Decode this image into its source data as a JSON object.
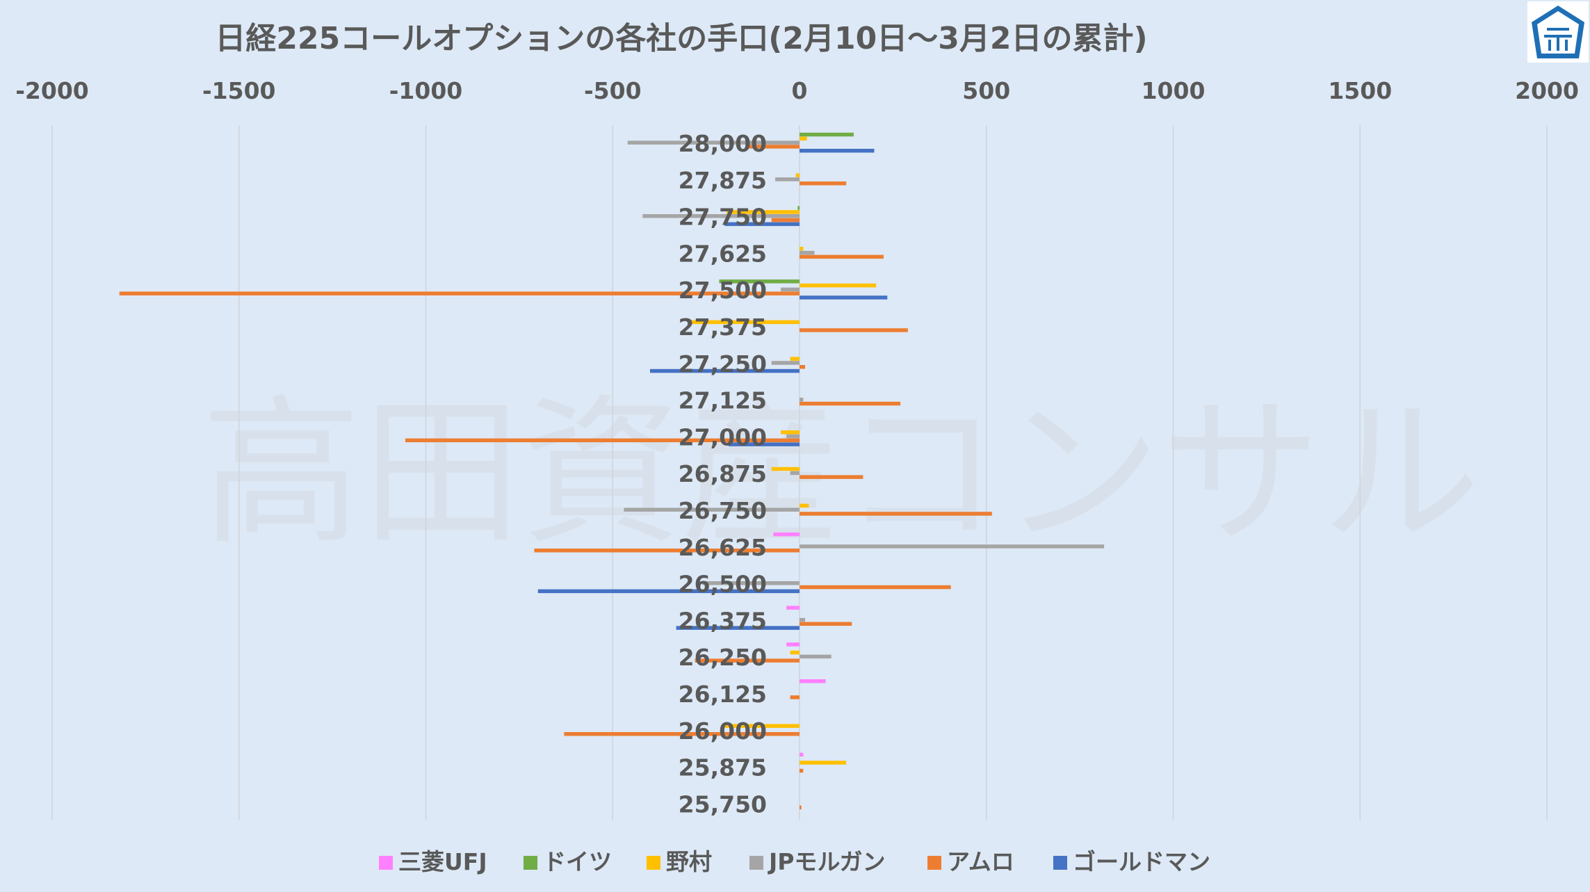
{
  "chart_data": {
    "type": "bar",
    "orientation": "horizontal",
    "title": "日経225コールオプションの各社の手口(2月10日～3月2日の累計)",
    "watermark": "高田資産コンサル",
    "xlim": [
      -2000,
      2000
    ],
    "xticks": [
      -2000,
      -1500,
      -1000,
      -500,
      0,
      500,
      1000,
      1500,
      2000
    ],
    "xtick_labels": [
      "-2000",
      "-1500",
      "-1000",
      "-500",
      "0",
      "500",
      "1000",
      "1500",
      "2000"
    ],
    "x_axis_position": "top",
    "grid": true,
    "legend_position": "bottom",
    "categories": [
      "28,000",
      "27,875",
      "27,750",
      "27,625",
      "27,500",
      "27,375",
      "27,250",
      "27,125",
      "27,000",
      "26,875",
      "26,750",
      "26,625",
      "26,500",
      "26,375",
      "26,250",
      "26,125",
      "26,000",
      "25,875",
      "25,750"
    ],
    "series": [
      {
        "name": "三菱UFJ",
        "color": "#ff80ff",
        "values": [
          0,
          0,
          0,
          0,
          0,
          0,
          0,
          0,
          0,
          0,
          0,
          -70,
          0,
          -35,
          -35,
          70,
          0,
          10,
          0
        ]
      },
      {
        "name": "ドイツ",
        "color": "#70ad47",
        "values": [
          145,
          0,
          -5,
          0,
          -215,
          0,
          0,
          0,
          0,
          0,
          0,
          0,
          0,
          0,
          0,
          0,
          0,
          0,
          0
        ]
      },
      {
        "name": "野村",
        "color": "#ffc000",
        "values": [
          20,
          -10,
          -195,
          10,
          205,
          -290,
          -25,
          0,
          -50,
          -75,
          25,
          0,
          0,
          0,
          -25,
          0,
          -200,
          125,
          0
        ]
      },
      {
        "name": "JPモルガン",
        "color": "#a5a5a5",
        "values": [
          -460,
          -65,
          -420,
          40,
          -50,
          0,
          -75,
          10,
          -35,
          -25,
          -470,
          815,
          -260,
          15,
          85,
          0,
          0,
          0,
          0
        ]
      },
      {
        "name": "アムロ",
        "color": "#ed7d31",
        "values": [
          -140,
          125,
          -75,
          225,
          -1820,
          290,
          15,
          270,
          -1055,
          170,
          515,
          -710,
          405,
          140,
          -280,
          -25,
          -630,
          10,
          5
        ]
      },
      {
        "name": "ゴールドマン",
        "color": "#4472c4",
        "values": [
          200,
          0,
          -200,
          0,
          235,
          0,
          -400,
          0,
          -190,
          0,
          0,
          0,
          -700,
          -330,
          0,
          0,
          0,
          0,
          0
        ]
      }
    ]
  }
}
